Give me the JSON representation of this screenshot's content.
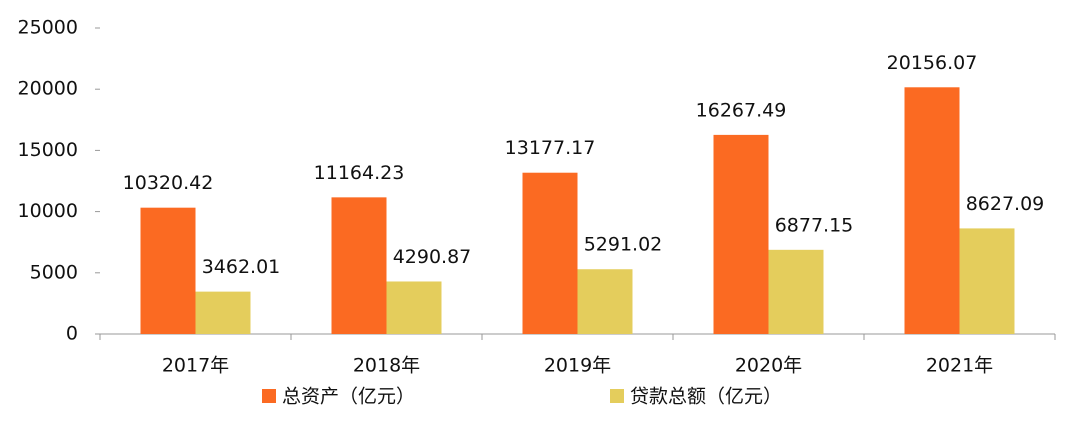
{
  "chart_data": {
    "type": "bar",
    "categories": [
      "2017年",
      "2018年",
      "2019年",
      "2020年",
      "2021年"
    ],
    "series": [
      {
        "name": "总资产（亿元）",
        "color": "#fb6a22",
        "values": [
          10320.42,
          11164.23,
          13177.17,
          16267.49,
          20156.07
        ]
      },
      {
        "name": "贷款总额（亿元）",
        "color": "#e4cd5c",
        "values": [
          3462.01,
          4290.87,
          5291.02,
          6877.15,
          8627.09
        ]
      }
    ],
    "ylim": [
      0,
      25000
    ],
    "yticks": [
      0,
      5000,
      10000,
      15000,
      20000,
      25000
    ],
    "grid": false,
    "legend": "bottom"
  }
}
